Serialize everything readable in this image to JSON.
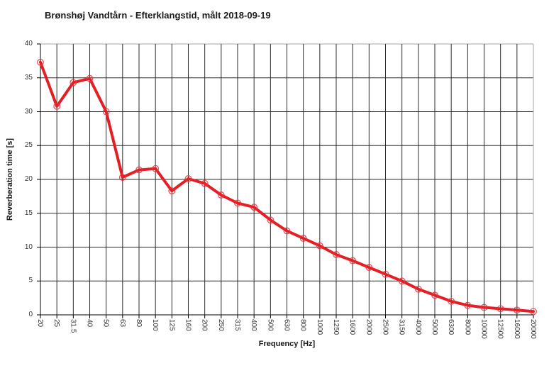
{
  "page": {
    "background": "#ffffff"
  },
  "colors": {
    "line": "#e31e24",
    "marker": "#e8343b",
    "grid": "#2b2b2b",
    "axis": "#000000",
    "frame_light": "#a6a6a6",
    "tick_text": "#333333",
    "title_text": "#1a1a1a"
  },
  "chart_data": {
    "type": "line",
    "title": "Brønshøj Vandtårn - Efterklangstid, målt 2018-09-19",
    "xlabel": "Frequency [Hz]",
    "ylabel": "Reverberation time [s]",
    "categories": [
      "20",
      "25",
      "31.5",
      "40",
      "50",
      "63",
      "80",
      "100",
      "125",
      "160",
      "200",
      "250",
      "315",
      "400",
      "500",
      "630",
      "800",
      "1000",
      "1250",
      "1600",
      "2000",
      "2500",
      "3150",
      "4000",
      "5000",
      "6300",
      "8000",
      "10000",
      "12500",
      "16000",
      "20000"
    ],
    "values": [
      37.3,
      30.8,
      34.3,
      34.9,
      30.0,
      20.3,
      21.4,
      21.6,
      18.3,
      20.1,
      19.4,
      17.7,
      16.5,
      15.9,
      14.0,
      12.4,
      11.3,
      10.2,
      8.9,
      8.0,
      7.0,
      6.0,
      5.0,
      3.8,
      2.9,
      2.0,
      1.4,
      1.1,
      0.9,
      0.7,
      0.5
    ],
    "ylim": [
      0,
      40
    ],
    "ytick_step": 5,
    "yticks": [
      0,
      5,
      10,
      15,
      20,
      25,
      30,
      35,
      40
    ],
    "grid": true,
    "legend": "none",
    "marker": "open-circle",
    "x_scale": "third-octave-bands"
  }
}
